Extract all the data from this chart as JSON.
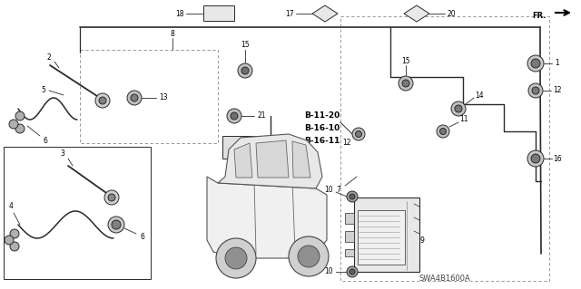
{
  "bg_color": "#ffffff",
  "fig_width": 6.4,
  "fig_height": 3.19,
  "dpi": 100,
  "diagram_code": "SWA4B1600A",
  "line_color": "#2a2a2a",
  "label_color": "#000000",
  "bold_labels": [
    "B-11-20",
    "B-16-10",
    "B-16-11"
  ],
  "label_fs": 5.5,
  "bold_fs": 6.5
}
